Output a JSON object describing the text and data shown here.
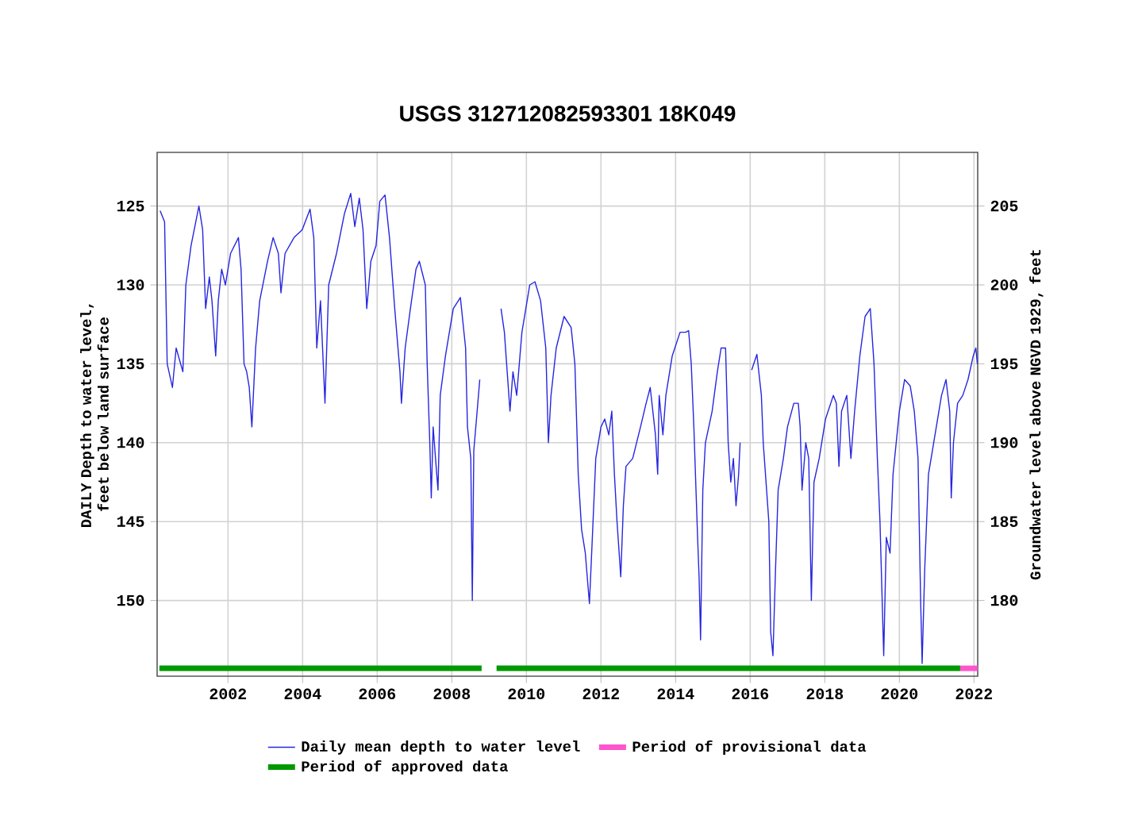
{
  "chart_data": {
    "type": "line",
    "title": "USGS 312712082593301 18K049",
    "ylabel": "DAILY Depth to water level, feet below land surface",
    "y2label": "Groundwater level above NGVD 1929, feet",
    "xlim": [
      2000.1,
      2022.1
    ],
    "xticks": [
      2002,
      2004,
      2006,
      2008,
      2010,
      2012,
      2014,
      2016,
      2018,
      2020,
      2022
    ],
    "ylim": [
      154.8,
      121.6
    ],
    "yticks": [
      125,
      130,
      135,
      140,
      145,
      150
    ],
    "y2lim": [
      175.2,
      208.4
    ],
    "y2ticks": [
      180,
      185,
      190,
      195,
      200,
      205
    ],
    "grid": true,
    "legend": "bottom",
    "marker": "none",
    "line_style": "solid",
    "series": [
      {
        "name": "Daily mean depth to water level",
        "color": "#2626e0",
        "x": [
          2000.18,
          2000.3,
          2000.37,
          2000.51,
          2000.61,
          2000.79,
          2000.87,
          2001.01,
          2001.22,
          2001.32,
          2001.4,
          2001.5,
          2001.57,
          2001.67,
          2001.74,
          2001.83,
          2001.93,
          2002.07,
          2002.28,
          2002.35,
          2002.43,
          2002.5,
          2002.57,
          2002.64,
          2002.74,
          2002.85,
          2003.06,
          2003.21,
          2003.35,
          2003.42,
          2003.53,
          2003.77,
          2003.99,
          2004.2,
          2004.3,
          2004.38,
          2004.48,
          2004.6,
          2004.7,
          2004.91,
          2005.12,
          2005.29,
          2005.4,
          2005.52,
          2005.62,
          2005.72,
          2005.83,
          2005.97,
          2006.07,
          2006.21,
          2006.33,
          2006.47,
          2006.61,
          2006.65,
          2006.75,
          2006.89,
          2007.04,
          2007.13,
          2007.29,
          2007.34,
          2007.41,
          2007.45,
          2007.5,
          2007.58,
          2007.63,
          2007.69,
          2007.83,
          2008.04,
          2008.23,
          2008.37,
          2008.42,
          2008.51,
          2008.55,
          2008.59,
          2008.68,
          2008.75,
          2009.0,
          2009.32,
          2009.41,
          2009.5,
          2009.56,
          2009.64,
          2009.74,
          2009.88,
          2010.09,
          2010.23,
          2010.38,
          2010.52,
          2010.59,
          2010.66,
          2010.8,
          2011.01,
          2011.2,
          2011.3,
          2011.39,
          2011.48,
          2011.58,
          2011.69,
          2011.75,
          2011.86,
          2012.0,
          2012.1,
          2012.21,
          2012.29,
          2012.36,
          2012.43,
          2012.53,
          2012.6,
          2012.67,
          2012.85,
          2013.06,
          2013.21,
          2013.32,
          2013.46,
          2013.52,
          2013.56,
          2013.66,
          2013.74,
          2013.91,
          2014.12,
          2014.27,
          2014.35,
          2014.42,
          2014.49,
          2014.59,
          2014.63,
          2014.67,
          2014.73,
          2014.8,
          2014.98,
          2015.12,
          2015.22,
          2015.34,
          2015.41,
          2015.48,
          2015.55,
          2015.62,
          2015.69,
          2015.73,
          2015.9,
          2016.04,
          2016.18,
          2016.3,
          2016.35,
          2016.44,
          2016.5,
          2016.55,
          2016.61,
          2016.68,
          2016.75,
          2016.89,
          2017.0,
          2017.17,
          2017.29,
          2017.34,
          2017.39,
          2017.49,
          2017.57,
          2017.64,
          2017.71,
          2017.85,
          2018.02,
          2018.23,
          2018.31,
          2018.38,
          2018.45,
          2018.59,
          2018.7,
          2018.8,
          2018.94,
          2019.08,
          2019.22,
          2019.32,
          2019.41,
          2019.48,
          2019.58,
          2019.65,
          2019.75,
          2019.83,
          2020.0,
          2020.14,
          2020.29,
          2020.4,
          2020.5,
          2020.57,
          2020.61,
          2020.68,
          2020.78,
          2020.92,
          2021.13,
          2021.25,
          2021.35,
          2021.39,
          2021.45,
          2021.56,
          2021.7,
          2021.84,
          2021.98,
          2022.05,
          2022.09
        ],
        "values": [
          125.3,
          126,
          135,
          136.5,
          134,
          135.5,
          130,
          127.5,
          125,
          126.5,
          131.5,
          129.5,
          131,
          134.5,
          131,
          129,
          130,
          128,
          127,
          129,
          135,
          135.5,
          136.5,
          139,
          134,
          131,
          128.5,
          127,
          128,
          130.5,
          128,
          127,
          126.5,
          125.2,
          127,
          134,
          131,
          137.5,
          130,
          128,
          125.5,
          124.2,
          126.3,
          124.5,
          126.5,
          131.5,
          128.5,
          127.5,
          124.7,
          124.3,
          127,
          131.5,
          135.5,
          137.5,
          134,
          131.5,
          129,
          128.5,
          130,
          135,
          140,
          143.5,
          139,
          141.5,
          143,
          137,
          134.5,
          131.5,
          130.8,
          134,
          139,
          141,
          150,
          140.5,
          138,
          136,
          null,
          131.5,
          133,
          136,
          138,
          135.5,
          137,
          133,
          130,
          129.8,
          131,
          134,
          140,
          137,
          134,
          132,
          132.7,
          135,
          142,
          145.5,
          147,
          150.2,
          147,
          141,
          139,
          138.5,
          139.5,
          138,
          142,
          145,
          148.5,
          144,
          141.5,
          141,
          139,
          137.5,
          136.5,
          139.5,
          142,
          137,
          139.5,
          137,
          134.5,
          133,
          133,
          132.9,
          135,
          139,
          146,
          148.5,
          152.5,
          143,
          140,
          138,
          135.5,
          134,
          134,
          140,
          142.5,
          141,
          144,
          142,
          140,
          null,
          135.4,
          134.4,
          137,
          140,
          143,
          145,
          152,
          153.5,
          148,
          143,
          141,
          139,
          137.5,
          137.5,
          139,
          143,
          140,
          141,
          150,
          142.5,
          141,
          138.5,
          137,
          137.5,
          141.5,
          138,
          137,
          141,
          138,
          134.5,
          132,
          131.5,
          135,
          141,
          145,
          153.5,
          146,
          147,
          142,
          138,
          136,
          136.4,
          138,
          141,
          150,
          154,
          148,
          142,
          140,
          137,
          136,
          138,
          143.5,
          140,
          137.5,
          137,
          136,
          134.5,
          134,
          135
        ]
      },
      {
        "name": "Period of provisional data",
        "color": "#ff55cc",
        "x": [
          2021.63,
          2022.1
        ],
        "values": [
          154.3,
          154.3
        ]
      },
      {
        "name": "Period of approved data",
        "color": "#009900",
        "x": [
          2000.16,
          2008.8,
          2009.0,
          2009.2,
          2021.63
        ],
        "values": [
          154.3,
          154.3,
          null,
          154.3,
          154.3
        ]
      }
    ]
  }
}
